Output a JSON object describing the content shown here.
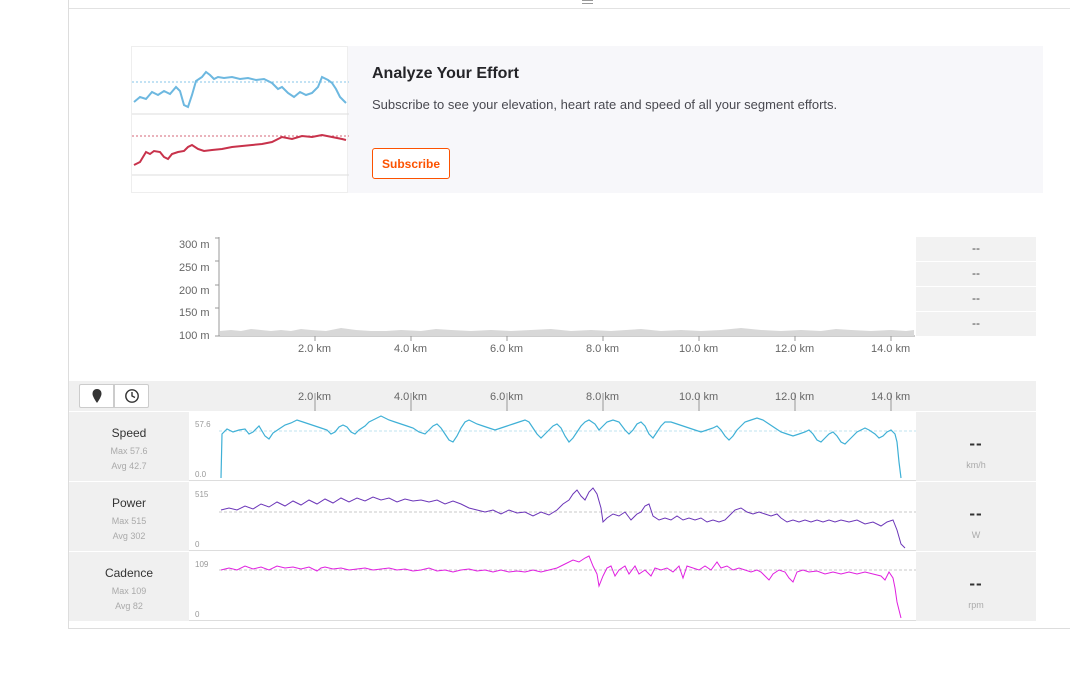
{
  "upsell": {
    "title": "Analyze Your Effort",
    "description": "Subscribe to see your elevation, heart rate and speed of all your segment efforts.",
    "button_label": "Subscribe"
  },
  "elevation": {
    "y_labels": [
      "300 m",
      "250 m",
      "200 m",
      "150 m",
      "100 m"
    ],
    "x_labels": [
      "2.0 km",
      "4.0 km",
      "6.0 km",
      "8.0 km",
      "10.0 km",
      "12.0 km",
      "14.0 km"
    ],
    "side_values": [
      "--",
      "--",
      "--",
      "--"
    ]
  },
  "toolbar": {
    "distance_icon": "map-pin-icon",
    "time_icon": "clock-icon",
    "x_labels": [
      "2.0 km",
      "4.0 km",
      "6.0 km",
      "8.0 km",
      "10.0 km",
      "12.0 km",
      "14.0 km"
    ]
  },
  "streams": [
    {
      "name": "Speed",
      "max": "Max 57.6",
      "avg": "Avg 42.7",
      "ymax": "57.6",
      "ymin": "0.0",
      "value": "--",
      "unit": "km/h",
      "color": "#3fb0d6"
    },
    {
      "name": "Power",
      "max": "Max 515",
      "avg": "Avg 302",
      "ymax": "515",
      "ymin": "0",
      "value": "--",
      "unit": "W",
      "color": "#6b35b8"
    },
    {
      "name": "Cadence",
      "max": "Max 109",
      "avg": "Avg 82",
      "ymax": "109",
      "ymin": "0",
      "value": "--",
      "unit": "rpm",
      "color": "#e020e0"
    }
  ],
  "colors": {
    "accent": "#fc5200",
    "speed": "#3fb0d6",
    "power": "#6b35b8",
    "cadence": "#e020e0",
    "heart": "#c8324b"
  }
}
